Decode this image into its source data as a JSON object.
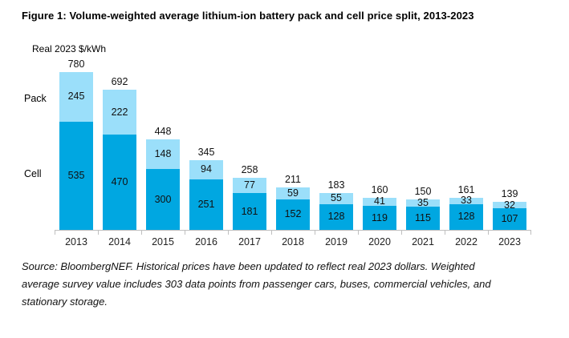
{
  "title": "Figure 1: Volume-weighted average lithium-ion battery pack and cell price split, 2013-2023",
  "chart_data": {
    "type": "bar",
    "stacked": true,
    "unit_label": "Real 2023 $/kWh",
    "categories": [
      "2013",
      "2014",
      "2015",
      "2016",
      "2017",
      "2018",
      "2019",
      "2020",
      "2021",
      "2022",
      "2023"
    ],
    "series": [
      {
        "name": "Pack",
        "color": "#9bdffa",
        "values": [
          245,
          222,
          148,
          94,
          77,
          59,
          55,
          41,
          35,
          33,
          32
        ]
      },
      {
        "name": "Cell",
        "color": "#00a7e1",
        "values": [
          535,
          470,
          300,
          251,
          181,
          152,
          128,
          119,
          115,
          128,
          107
        ]
      }
    ],
    "totals": [
      780,
      692,
      448,
      345,
      258,
      211,
      183,
      160,
      150,
      161,
      139
    ],
    "ylim": [
      0,
      820
    ],
    "grid": false,
    "legend_position": "left-of-bars-inline",
    "axis_color": "#bfbfbf"
  },
  "source_note": {
    "lines": [
      "Source: BloombergNEF. Historical prices have been updated to reflect real 2023 dollars. Weighted",
      "average survey value includes 303 data points from passenger cars, buses, commercial vehicles, and",
      "stationary storage."
    ]
  }
}
